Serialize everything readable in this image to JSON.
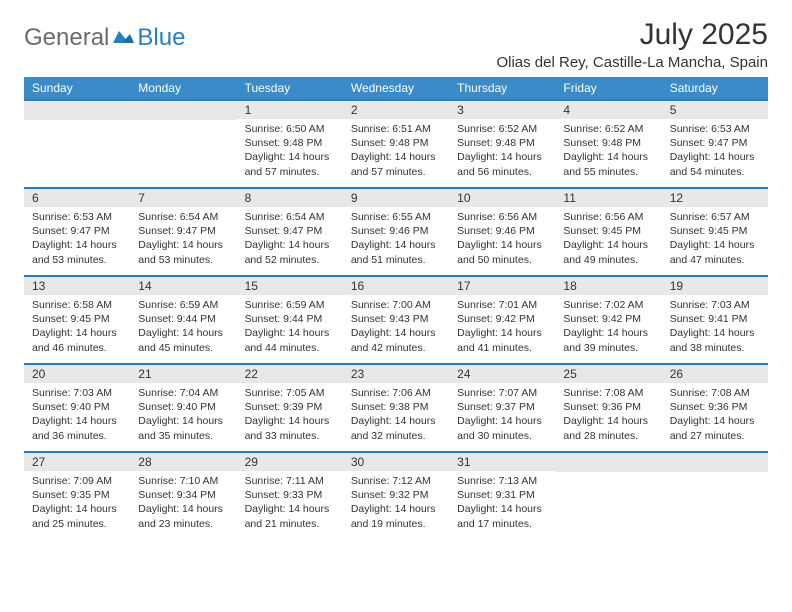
{
  "logo": {
    "general": "General",
    "blue": "Blue"
  },
  "title": "July 2025",
  "location": "Olias del Rey, Castille-La Mancha, Spain",
  "day_names": [
    "Sunday",
    "Monday",
    "Tuesday",
    "Wednesday",
    "Thursday",
    "Friday",
    "Saturday"
  ],
  "colors": {
    "header_bar": "#3b8bc9",
    "week_border": "#2b7fbf",
    "daynum_bg": "#e8e8ea",
    "text": "#333333",
    "logo_gray": "#6b6b6b",
    "logo_blue": "#2b7fbf"
  },
  "weeks": [
    [
      {
        "blank": true
      },
      {
        "blank": true
      },
      {
        "n": "1",
        "sunrise": "6:50 AM",
        "sunset": "9:48 PM",
        "day_h": 14,
        "day_m": 57
      },
      {
        "n": "2",
        "sunrise": "6:51 AM",
        "sunset": "9:48 PM",
        "day_h": 14,
        "day_m": 57
      },
      {
        "n": "3",
        "sunrise": "6:52 AM",
        "sunset": "9:48 PM",
        "day_h": 14,
        "day_m": 56
      },
      {
        "n": "4",
        "sunrise": "6:52 AM",
        "sunset": "9:48 PM",
        "day_h": 14,
        "day_m": 55
      },
      {
        "n": "5",
        "sunrise": "6:53 AM",
        "sunset": "9:47 PM",
        "day_h": 14,
        "day_m": 54
      }
    ],
    [
      {
        "n": "6",
        "sunrise": "6:53 AM",
        "sunset": "9:47 PM",
        "day_h": 14,
        "day_m": 53
      },
      {
        "n": "7",
        "sunrise": "6:54 AM",
        "sunset": "9:47 PM",
        "day_h": 14,
        "day_m": 53
      },
      {
        "n": "8",
        "sunrise": "6:54 AM",
        "sunset": "9:47 PM",
        "day_h": 14,
        "day_m": 52
      },
      {
        "n": "9",
        "sunrise": "6:55 AM",
        "sunset": "9:46 PM",
        "day_h": 14,
        "day_m": 51
      },
      {
        "n": "10",
        "sunrise": "6:56 AM",
        "sunset": "9:46 PM",
        "day_h": 14,
        "day_m": 50
      },
      {
        "n": "11",
        "sunrise": "6:56 AM",
        "sunset": "9:45 PM",
        "day_h": 14,
        "day_m": 49
      },
      {
        "n": "12",
        "sunrise": "6:57 AM",
        "sunset": "9:45 PM",
        "day_h": 14,
        "day_m": 47
      }
    ],
    [
      {
        "n": "13",
        "sunrise": "6:58 AM",
        "sunset": "9:45 PM",
        "day_h": 14,
        "day_m": 46
      },
      {
        "n": "14",
        "sunrise": "6:59 AM",
        "sunset": "9:44 PM",
        "day_h": 14,
        "day_m": 45
      },
      {
        "n": "15",
        "sunrise": "6:59 AM",
        "sunset": "9:44 PM",
        "day_h": 14,
        "day_m": 44
      },
      {
        "n": "16",
        "sunrise": "7:00 AM",
        "sunset": "9:43 PM",
        "day_h": 14,
        "day_m": 42
      },
      {
        "n": "17",
        "sunrise": "7:01 AM",
        "sunset": "9:42 PM",
        "day_h": 14,
        "day_m": 41
      },
      {
        "n": "18",
        "sunrise": "7:02 AM",
        "sunset": "9:42 PM",
        "day_h": 14,
        "day_m": 39
      },
      {
        "n": "19",
        "sunrise": "7:03 AM",
        "sunset": "9:41 PM",
        "day_h": 14,
        "day_m": 38
      }
    ],
    [
      {
        "n": "20",
        "sunrise": "7:03 AM",
        "sunset": "9:40 PM",
        "day_h": 14,
        "day_m": 36
      },
      {
        "n": "21",
        "sunrise": "7:04 AM",
        "sunset": "9:40 PM",
        "day_h": 14,
        "day_m": 35
      },
      {
        "n": "22",
        "sunrise": "7:05 AM",
        "sunset": "9:39 PM",
        "day_h": 14,
        "day_m": 33
      },
      {
        "n": "23",
        "sunrise": "7:06 AM",
        "sunset": "9:38 PM",
        "day_h": 14,
        "day_m": 32
      },
      {
        "n": "24",
        "sunrise": "7:07 AM",
        "sunset": "9:37 PM",
        "day_h": 14,
        "day_m": 30
      },
      {
        "n": "25",
        "sunrise": "7:08 AM",
        "sunset": "9:36 PM",
        "day_h": 14,
        "day_m": 28
      },
      {
        "n": "26",
        "sunrise": "7:08 AM",
        "sunset": "9:36 PM",
        "day_h": 14,
        "day_m": 27
      }
    ],
    [
      {
        "n": "27",
        "sunrise": "7:09 AM",
        "sunset": "9:35 PM",
        "day_h": 14,
        "day_m": 25
      },
      {
        "n": "28",
        "sunrise": "7:10 AM",
        "sunset": "9:34 PM",
        "day_h": 14,
        "day_m": 23
      },
      {
        "n": "29",
        "sunrise": "7:11 AM",
        "sunset": "9:33 PM",
        "day_h": 14,
        "day_m": 21
      },
      {
        "n": "30",
        "sunrise": "7:12 AM",
        "sunset": "9:32 PM",
        "day_h": 14,
        "day_m": 19
      },
      {
        "n": "31",
        "sunrise": "7:13 AM",
        "sunset": "9:31 PM",
        "day_h": 14,
        "day_m": 17
      },
      {
        "blank": true
      },
      {
        "blank": true
      }
    ]
  ]
}
